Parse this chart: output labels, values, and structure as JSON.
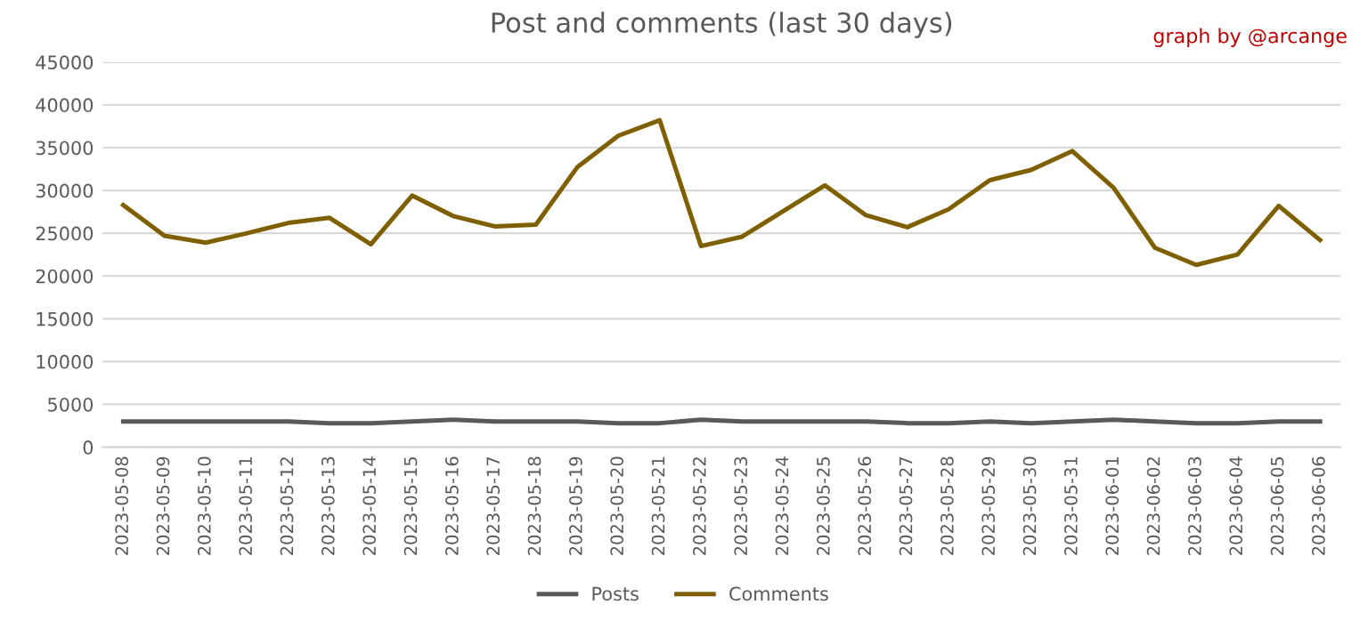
{
  "chart_data": {
    "type": "line",
    "title": "Post and comments (last 30 days)",
    "annotations": [
      "graph by @arcange"
    ],
    "categories": [
      "2023-05-08",
      "2023-05-09",
      "2023-05-10",
      "2023-05-11",
      "2023-05-12",
      "2023-05-13",
      "2023-05-14",
      "2023-05-15",
      "2023-05-16",
      "2023-05-17",
      "2023-05-18",
      "2023-05-19",
      "2023-05-20",
      "2023-05-21",
      "2023-05-22",
      "2023-05-23",
      "2023-05-24",
      "2023-05-25",
      "2023-05-26",
      "2023-05-27",
      "2023-05-28",
      "2023-05-29",
      "2023-05-30",
      "2023-05-31",
      "2023-06-01",
      "2023-06-02",
      "2023-06-03",
      "2023-06-04",
      "2023-06-05",
      "2023-06-06"
    ],
    "series": [
      {
        "name": "Posts",
        "color": "#595959",
        "values": [
          3000,
          3000,
          3000,
          3000,
          3000,
          2800,
          2800,
          3000,
          3200,
          3000,
          3000,
          3000,
          2800,
          2800,
          3200,
          3000,
          3000,
          3000,
          3000,
          2800,
          2800,
          3000,
          2800,
          3000,
          3200,
          3000,
          2800,
          2800,
          3000,
          3000
        ]
      },
      {
        "name": "Comments",
        "color": "#7f6000",
        "values": [
          28300,
          24700,
          23900,
          25000,
          26200,
          26800,
          23700,
          29400,
          27000,
          25800,
          26000,
          32700,
          36400,
          38200,
          23500,
          24600,
          27600,
          30600,
          27100,
          25700,
          27800,
          31200,
          32400,
          34600,
          30300,
          23300,
          21300,
          22500,
          28200,
          24200
        ]
      }
    ],
    "ylim": [
      0,
      45000
    ],
    "yticks": [
      0,
      5000,
      10000,
      15000,
      20000,
      25000,
      30000,
      35000,
      40000,
      45000
    ],
    "grid": "y",
    "legend": "bottom",
    "marker": "none",
    "line_style": "solid"
  }
}
